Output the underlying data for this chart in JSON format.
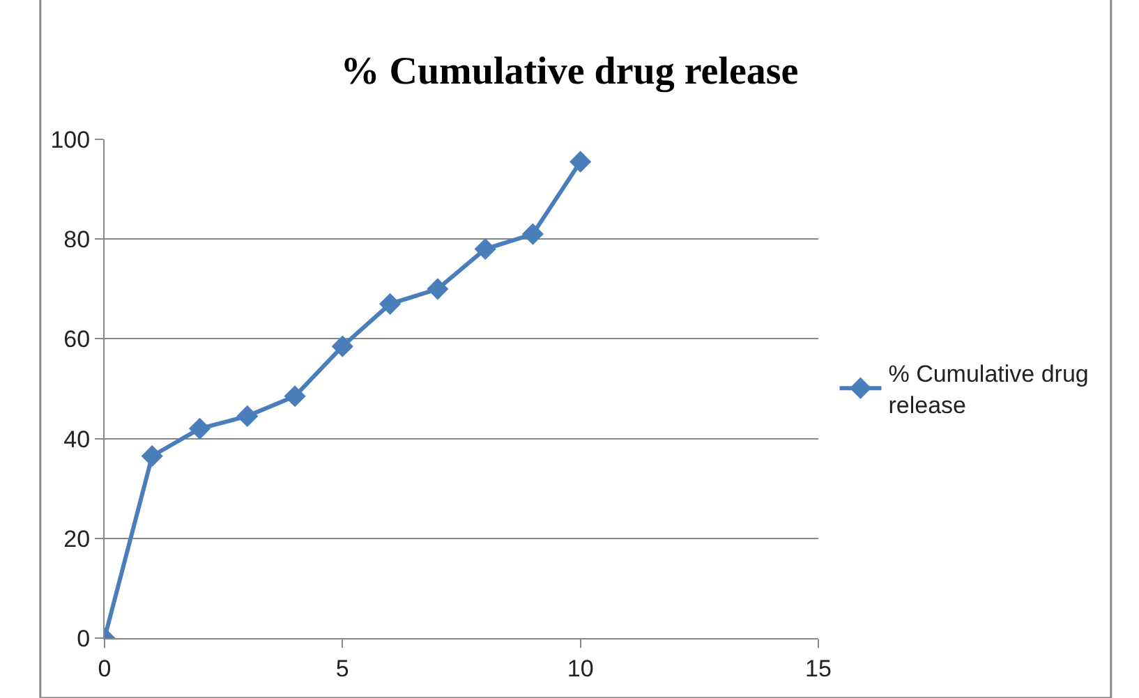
{
  "chart_data": {
    "type": "line",
    "title": "% Cumulative drug release",
    "x": [
      0,
      1,
      2,
      3,
      4,
      5,
      6,
      7,
      8,
      9,
      10
    ],
    "series": [
      {
        "name": "% Cumulative drug release",
        "color": "#4a7ebb",
        "values": [
          0,
          36.5,
          42,
          44.5,
          48.5,
          58.5,
          67,
          70,
          78,
          81,
          95.5
        ]
      }
    ],
    "xlim": [
      0,
      15
    ],
    "xticks": [
      0,
      5,
      10,
      15
    ],
    "ylim": [
      0,
      100
    ],
    "yticks": [
      0,
      20,
      40,
      60,
      80,
      100
    ],
    "grid": "y",
    "legend": "right",
    "marker": "diamond",
    "line_style": "solid"
  }
}
